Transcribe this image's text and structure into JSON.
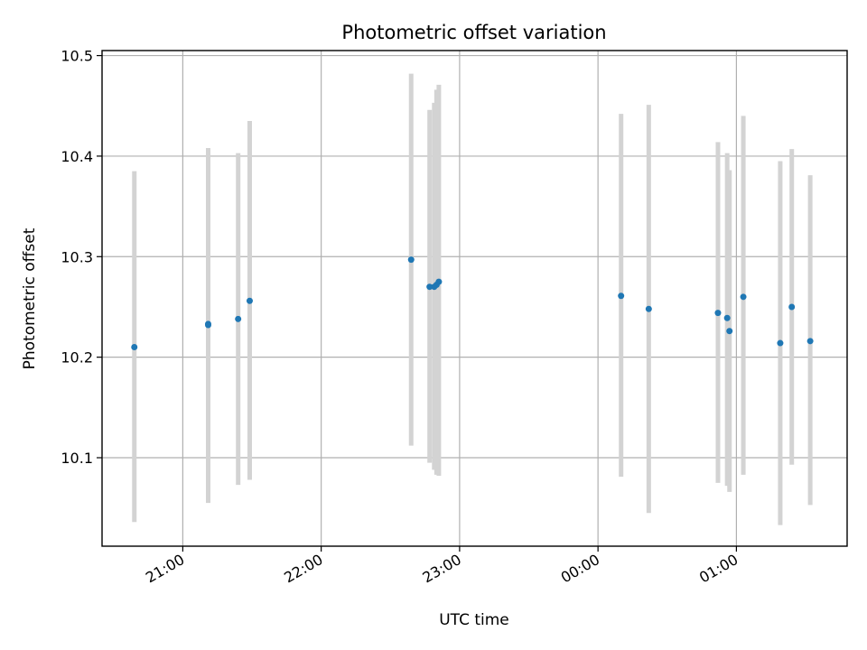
{
  "chart_data": {
    "type": "scatter",
    "title": "Photometric offset variation",
    "xlabel": "UTC time",
    "ylabel": "Photometric offset",
    "xlim": [
      "20:25",
      "01:48"
    ],
    "ylim": [
      10.012,
      10.505
    ],
    "grid": true,
    "x_ticks": [
      "21:00",
      "22:00",
      "23:00",
      "00:00",
      "01:00"
    ],
    "y_ticks": [
      10.1,
      10.2,
      10.3,
      10.4,
      10.5
    ],
    "y_tick_labels": [
      "10.1",
      "10.2",
      "10.3",
      "10.4",
      "10.5"
    ],
    "series": [
      {
        "marker_color": "#1f77b4",
        "errorbar_color": "#d3d3d3",
        "points": [
          {
            "t": "20:39",
            "y": 10.21,
            "ylow": 10.036,
            "yhigh": 10.385
          },
          {
            "t": "21:11",
            "y": 10.233,
            "ylow": 10.055,
            "yhigh": 10.408
          },
          {
            "t": "21:11",
            "y": 10.232,
            "ylow": 10.06,
            "yhigh": 10.404
          },
          {
            "t": "21:24",
            "y": 10.238,
            "ylow": 10.073,
            "yhigh": 10.403
          },
          {
            "t": "21:29",
            "y": 10.256,
            "ylow": 10.078,
            "yhigh": 10.435
          },
          {
            "t": "22:39",
            "y": 10.297,
            "ylow": 10.112,
            "yhigh": 10.482
          },
          {
            "t": "22:47",
            "y": 10.27,
            "ylow": 10.095,
            "yhigh": 10.446
          },
          {
            "t": "22:49",
            "y": 10.27,
            "ylow": 10.088,
            "yhigh": 10.453
          },
          {
            "t": "22:50",
            "y": 10.272,
            "ylow": 10.083,
            "yhigh": 10.466
          },
          {
            "t": "22:51",
            "y": 10.275,
            "ylow": 10.082,
            "yhigh": 10.471
          },
          {
            "t": "00:10",
            "y": 10.261,
            "ylow": 10.081,
            "yhigh": 10.442
          },
          {
            "t": "00:22",
            "y": 10.248,
            "ylow": 10.045,
            "yhigh": 10.451
          },
          {
            "t": "00:52",
            "y": 10.244,
            "ylow": 10.075,
            "yhigh": 10.414
          },
          {
            "t": "00:56",
            "y": 10.239,
            "ylow": 10.072,
            "yhigh": 10.403
          },
          {
            "t": "00:57",
            "y": 10.226,
            "ylow": 10.066,
            "yhigh": 10.386
          },
          {
            "t": "01:03",
            "y": 10.26,
            "ylow": 10.083,
            "yhigh": 10.44
          },
          {
            "t": "01:19",
            "y": 10.214,
            "ylow": 10.033,
            "yhigh": 10.395
          },
          {
            "t": "01:24",
            "y": 10.25,
            "ylow": 10.093,
            "yhigh": 10.407
          },
          {
            "t": "01:32",
            "y": 10.216,
            "ylow": 10.053,
            "yhigh": 10.381
          }
        ]
      }
    ]
  }
}
